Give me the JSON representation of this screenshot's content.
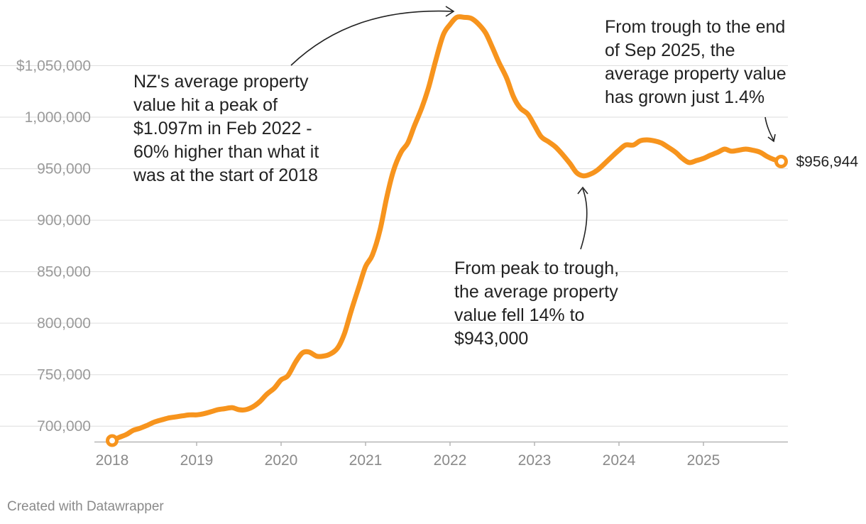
{
  "chart_data": {
    "type": "line",
    "series": [
      {
        "color": "#f7941d",
        "points": [
          [
            2018.0,
            686000
          ],
          [
            2018.08,
            689000
          ],
          [
            2018.17,
            692000
          ],
          [
            2018.25,
            696000
          ],
          [
            2018.33,
            698000
          ],
          [
            2018.42,
            701000
          ],
          [
            2018.5,
            704000
          ],
          [
            2018.58,
            706000
          ],
          [
            2018.67,
            708000
          ],
          [
            2018.75,
            709000
          ],
          [
            2018.83,
            710000
          ],
          [
            2018.92,
            711000
          ],
          [
            2019.0,
            711000
          ],
          [
            2019.08,
            712000
          ],
          [
            2019.17,
            714000
          ],
          [
            2019.25,
            716000
          ],
          [
            2019.33,
            717000
          ],
          [
            2019.42,
            718000
          ],
          [
            2019.5,
            716000
          ],
          [
            2019.58,
            716000
          ],
          [
            2019.67,
            719000
          ],
          [
            2019.75,
            724000
          ],
          [
            2019.83,
            731000
          ],
          [
            2019.92,
            737000
          ],
          [
            2020.0,
            745000
          ],
          [
            2020.08,
            749000
          ],
          [
            2020.17,
            762000
          ],
          [
            2020.25,
            771000
          ],
          [
            2020.33,
            772000
          ],
          [
            2020.42,
            768000
          ],
          [
            2020.5,
            768000
          ],
          [
            2020.58,
            770000
          ],
          [
            2020.67,
            776000
          ],
          [
            2020.75,
            790000
          ],
          [
            2020.83,
            812000
          ],
          [
            2020.92,
            835000
          ],
          [
            2021.0,
            855000
          ],
          [
            2021.08,
            866000
          ],
          [
            2021.17,
            890000
          ],
          [
            2021.25,
            922000
          ],
          [
            2021.33,
            948000
          ],
          [
            2021.42,
            966000
          ],
          [
            2021.5,
            975000
          ],
          [
            2021.58,
            992000
          ],
          [
            2021.67,
            1010000
          ],
          [
            2021.75,
            1030000
          ],
          [
            2021.83,
            1055000
          ],
          [
            2021.92,
            1080000
          ],
          [
            2022.0,
            1090000
          ],
          [
            2022.08,
            1097000
          ],
          [
            2022.17,
            1097000
          ],
          [
            2022.25,
            1096000
          ],
          [
            2022.33,
            1091000
          ],
          [
            2022.42,
            1082000
          ],
          [
            2022.5,
            1068000
          ],
          [
            2022.58,
            1053000
          ],
          [
            2022.67,
            1038000
          ],
          [
            2022.75,
            1020000
          ],
          [
            2022.83,
            1009000
          ],
          [
            2022.92,
            1003000
          ],
          [
            2023.0,
            992000
          ],
          [
            2023.08,
            981000
          ],
          [
            2023.17,
            976000
          ],
          [
            2023.25,
            971000
          ],
          [
            2023.33,
            964000
          ],
          [
            2023.42,
            955000
          ],
          [
            2023.5,
            946000
          ],
          [
            2023.58,
            943000
          ],
          [
            2023.67,
            945000
          ],
          [
            2023.75,
            949000
          ],
          [
            2023.83,
            955000
          ],
          [
            2023.92,
            962000
          ],
          [
            2024.0,
            968000
          ],
          [
            2024.08,
            973000
          ],
          [
            2024.17,
            973000
          ],
          [
            2024.25,
            977000
          ],
          [
            2024.33,
            978000
          ],
          [
            2024.42,
            977000
          ],
          [
            2024.5,
            975000
          ],
          [
            2024.58,
            971000
          ],
          [
            2024.67,
            966000
          ],
          [
            2024.75,
            960000
          ],
          [
            2024.83,
            956000
          ],
          [
            2024.92,
            958000
          ],
          [
            2025.0,
            960000
          ],
          [
            2025.08,
            963000
          ],
          [
            2025.17,
            966000
          ],
          [
            2025.25,
            969000
          ],
          [
            2025.33,
            967000
          ],
          [
            2025.42,
            968000
          ],
          [
            2025.5,
            969000
          ],
          [
            2025.58,
            968000
          ],
          [
            2025.67,
            966000
          ],
          [
            2025.75,
            962000
          ],
          [
            2025.83,
            959000
          ],
          [
            2025.92,
            956944
          ]
        ]
      }
    ],
    "ylim": [
      685000,
      1100000
    ],
    "xlim": [
      2018,
      2026
    ],
    "y_ticks": [
      {
        "value": 700000,
        "label": "700,000"
      },
      {
        "value": 750000,
        "label": "750,000"
      },
      {
        "value": 800000,
        "label": "800,000"
      },
      {
        "value": 850000,
        "label": "850,000"
      },
      {
        "value": 900000,
        "label": "900,000"
      },
      {
        "value": 950000,
        "label": "950,000"
      },
      {
        "value": 1000000,
        "label": "1,000,000"
      },
      {
        "value": 1050000,
        "label": "$1,050,000"
      }
    ],
    "x_ticks": [
      {
        "value": 2018,
        "label": "2018"
      },
      {
        "value": 2019,
        "label": "2019"
      },
      {
        "value": 2020,
        "label": "2020"
      },
      {
        "value": 2021,
        "label": "2021"
      },
      {
        "value": 2022,
        "label": "2022"
      },
      {
        "value": 2023,
        "label": "2023"
      },
      {
        "value": 2024,
        "label": "2024"
      },
      {
        "value": 2025,
        "label": "2025"
      }
    ],
    "end_label": "$956,944",
    "annotations": {
      "peak": [
        "NZ's average property",
        "value hit a peak of",
        "$1.097m in Feb 2022 -",
        "60% higher than what it",
        "was at the start of 2018"
      ],
      "trough": [
        "From peak to trough,",
        "the average property",
        "value fell 14% to",
        "$943,000"
      ],
      "end": [
        "From trough to the end",
        "of Sep 2025, the",
        "average property value",
        "has grown just 1.4%"
      ]
    },
    "grid": true,
    "legend": "none"
  },
  "footer": {
    "credit": "Created with Datawrapper"
  }
}
